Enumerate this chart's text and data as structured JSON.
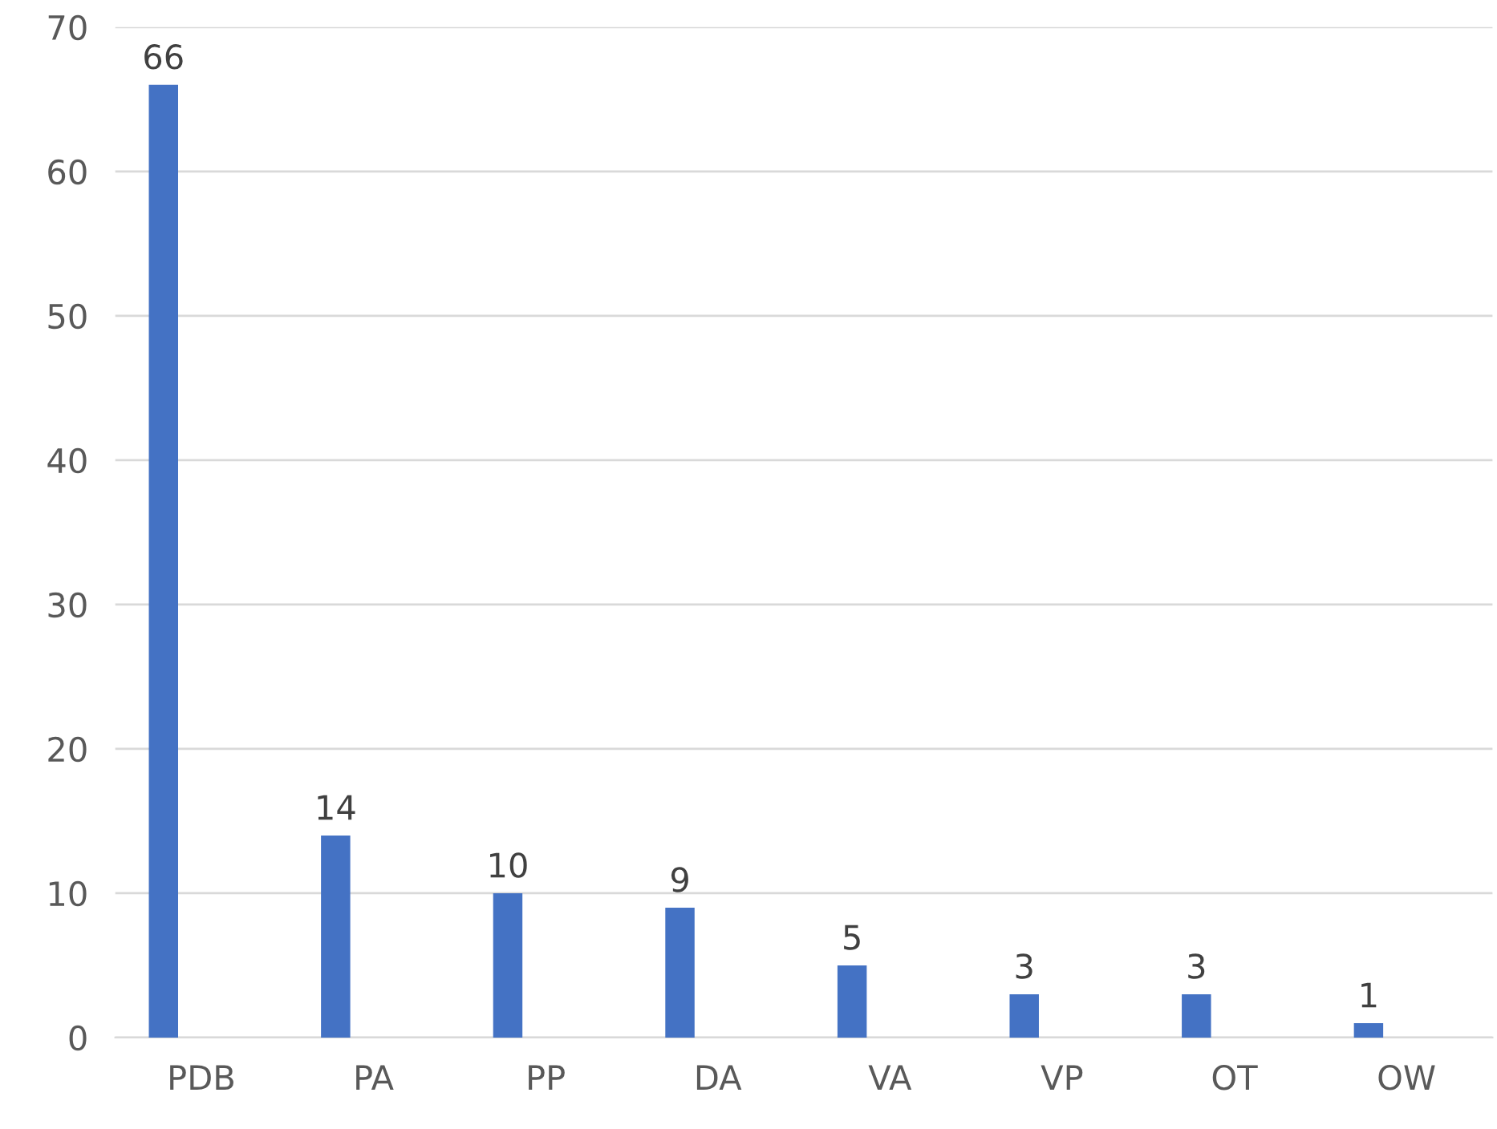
{
  "chart_data": {
    "type": "bar",
    "categories": [
      "PDB",
      "PA",
      "PP",
      "DA",
      "VA",
      "VP",
      "OT",
      "OW"
    ],
    "values": [
      66,
      14,
      10,
      9,
      5,
      3,
      3,
      1
    ],
    "color": "#4472c4",
    "ylim": [
      0,
      70
    ],
    "yticks": [
      0,
      10,
      20,
      30,
      40,
      50,
      60,
      70
    ],
    "grid": "y",
    "data_labels": true
  }
}
